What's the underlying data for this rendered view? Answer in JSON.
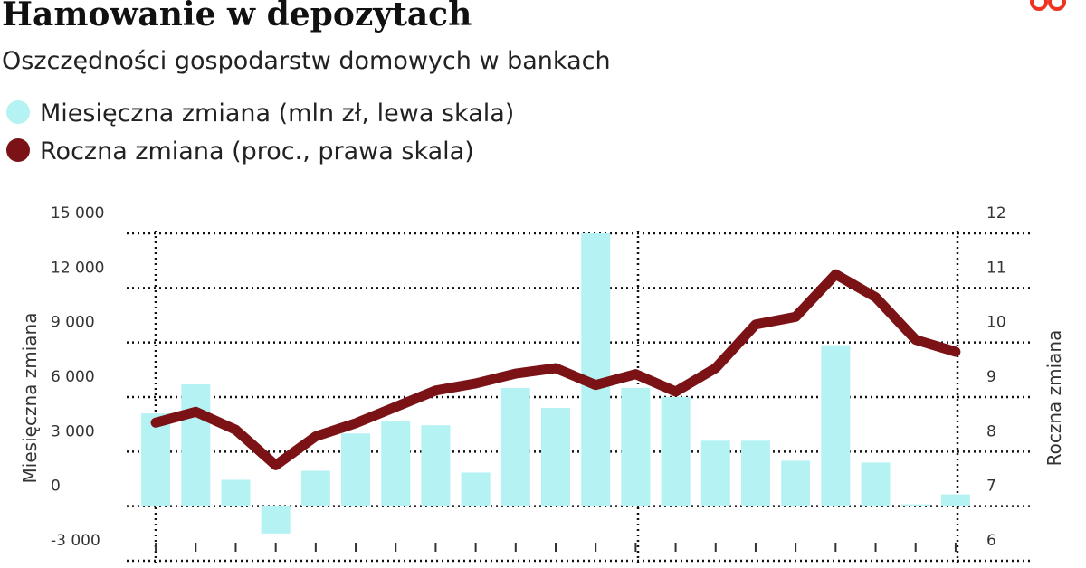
{
  "chart_data": {
    "type": "bar-line",
    "title": "Hamowanie w depozytach",
    "subtitle": "Oszczędności gospodarstw domowych w bankach",
    "y_label": "Miesięczna zmiana",
    "y2_label": "Roczna zmiana",
    "categories": [
      null,
      null,
      null,
      null,
      null,
      null,
      null,
      null,
      null,
      null,
      null,
      null,
      null,
      null,
      null,
      null,
      null,
      null,
      null,
      null,
      null
    ],
    "series": [
      {
        "name": "Miesięczna zmiana (mln zł, lewa skala)",
        "type": "bar",
        "color": "#b5f2f4",
        "values": [
          5100,
          6700,
          1450,
          -1500,
          1950,
          4000,
          4700,
          4450,
          1850,
          6500,
          5400,
          15100,
          6500,
          6000,
          3600,
          3600,
          2500,
          8850,
          2400,
          100,
          650
        ]
      },
      {
        "name": "Roczna zmiana (proc., prawa skala)",
        "type": "line",
        "axis": "y2",
        "color": "#7a1216",
        "values": [
          8.53,
          8.73,
          8.4,
          7.75,
          8.28,
          8.52,
          8.82,
          9.12,
          9.25,
          9.43,
          9.53,
          9.22,
          9.42,
          9.1,
          9.53,
          10.33,
          10.47,
          11.25,
          10.83,
          10.05,
          9.83
        ]
      }
    ],
    "ylim": [
      -3000,
      15000
    ],
    "yticks": [
      {
        "value": -3000,
        "label": "-3 000"
      },
      0,
      {
        "value": 3000,
        "label": "3 000"
      },
      {
        "value": 6000,
        "label": "6 000"
      },
      {
        "value": 9000,
        "label": "9 000"
      },
      {
        "value": 12000,
        "label": "12 000"
      },
      {
        "value": 15000,
        "label": "15 000"
      }
    ],
    "y2lim": [
      6,
      12
    ],
    "y2ticks": [
      6,
      7,
      8,
      9,
      10,
      11,
      12
    ],
    "grid": true
  }
}
